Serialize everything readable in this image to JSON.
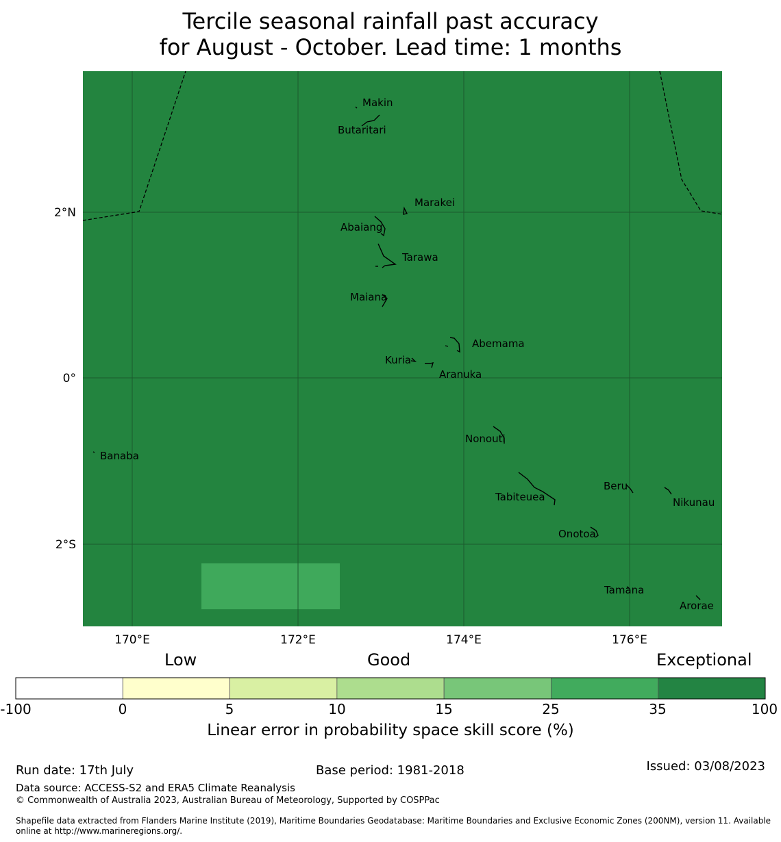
{
  "title": {
    "line1": "Tercile seasonal rainfall past accuracy",
    "line2": "for August - October. Lead time: 1 months"
  },
  "map": {
    "background_color": "#23843f",
    "patch_color": "#3fa95b",
    "gridline_color": "#1b5a2c",
    "x_ticks": [
      "170°E",
      "172°E",
      "174°E",
      "176°E"
    ],
    "y_ticks": [
      "2°N",
      "0°",
      "2°S"
    ],
    "places": [
      "Makin",
      "Butaritari",
      "Marakei",
      "Abaiang",
      "Tarawa",
      "Maiana",
      "Abemama",
      "Kuria",
      "Aranuka",
      "Banaba",
      "Nonouti",
      "Beru",
      "Tabiteuea",
      "Nikunau",
      "Onotoa",
      "Tamana",
      "Arorae"
    ]
  },
  "colorbar": {
    "categories": [
      "Low",
      "Good",
      "Exceptional"
    ],
    "ticks": [
      "-100",
      "0",
      "5",
      "10",
      "15",
      "25",
      "35",
      "100"
    ],
    "colors": [
      "#ffffff",
      "#ffffcc",
      "#d9f0a3",
      "#addd8e",
      "#78c679",
      "#41ab5d",
      "#238443"
    ],
    "label": "Linear error in probability space skill score (%)"
  },
  "footer": {
    "run_date": "Run date: 17th July",
    "base_period": "Base period: 1981-2018",
    "issued": "Issued: 03/08/2023",
    "data_source": "Data source: ACCESS-S2 and ERA5 Climate Reanalysis",
    "copyright": "© Commonwealth of Australia 2023, Australian Bureau of Meteorology, Supported by COSPPac",
    "shapefile_line1": "Shapefile data extracted from Flanders Marine Institute (2019), Maritime Boundaries Geodatabase: Maritime Boundaries and Exclusive Economic Zones (200NM), version 11. Available",
    "shapefile_line2": "online at http://www.marineregions.org/."
  }
}
